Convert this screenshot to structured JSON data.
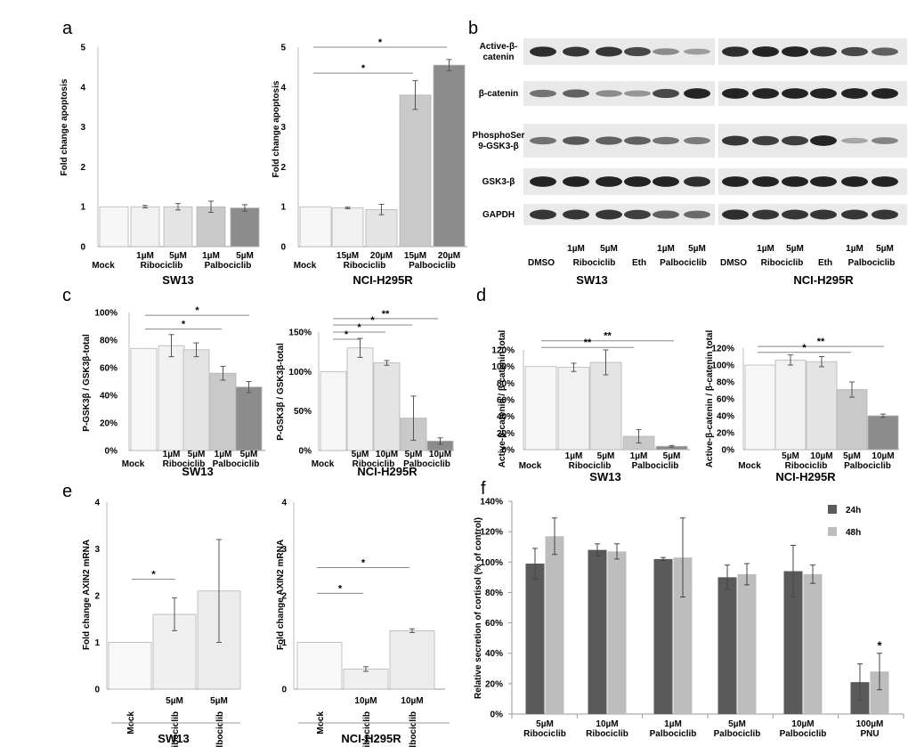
{
  "chart_data": [
    {
      "id": "a1",
      "panel": "a",
      "type": "bar",
      "title": "SW13",
      "ylabel": "Fold change apoptosis",
      "ylim": [
        0,
        5
      ],
      "yticks": [
        {
          "v": 0,
          "label": "0"
        },
        {
          "v": 1,
          "label": "1"
        },
        {
          "v": 2,
          "label": "2"
        },
        {
          "v": 3,
          "label": "3"
        },
        {
          "v": 4,
          "label": "4"
        },
        {
          "v": 5,
          "label": "5"
        }
      ],
      "categories": [
        "Mock",
        "1µM Ribociclib",
        "5µM Ribociclib",
        "1µM Palbociclib",
        "5µM Palbociclib"
      ],
      "values": [
        1.0,
        1.0,
        1.0,
        1.0,
        0.97
      ],
      "errors": [
        0,
        0.03,
        0.08,
        0.14,
        0.08
      ],
      "colors": [
        "#f6f6f6",
        "#f1f1f1",
        "#e4e4e4",
        "#c9c9c9",
        "#8c8c8c"
      ],
      "conc_labels": [
        "",
        "1µM",
        "5µM",
        "1µM",
        "5µM"
      ],
      "group_labels": [
        "Mock",
        "Ribociclib",
        "Palbociclib"
      ],
      "significance": []
    },
    {
      "id": "a2",
      "panel": "",
      "type": "bar",
      "title": "NCI-H295R",
      "ylabel": "Fold change apoptosis",
      "ylim": [
        0,
        5
      ],
      "yticks": [
        {
          "v": 0,
          "label": "0"
        },
        {
          "v": 1,
          "label": "1"
        },
        {
          "v": 2,
          "label": "2"
        },
        {
          "v": 3,
          "label": "3"
        },
        {
          "v": 4,
          "label": "4"
        },
        {
          "v": 5,
          "label": "5"
        }
      ],
      "categories": [
        "Mock",
        "15µM Ribociclib",
        "20µM Ribociclib",
        "15µM Palbociclib",
        "20µM Palbociclib"
      ],
      "values": [
        1.0,
        0.97,
        0.93,
        3.8,
        4.55
      ],
      "errors": [
        0,
        0.02,
        0.13,
        0.36,
        0.14
      ],
      "colors": [
        "#f6f6f6",
        "#f1f1f1",
        "#e4e4e4",
        "#c9c9c9",
        "#8c8c8c"
      ],
      "conc_labels": [
        "",
        "15µM",
        "20µM",
        "15µM",
        "20µM"
      ],
      "group_labels": [
        "Mock",
        "Ribociclib",
        "Palbociclib"
      ],
      "significance": [
        {
          "y": 5.0,
          "label": "*"
        },
        {
          "y": 4.35,
          "label": "*"
        }
      ]
    },
    {
      "id": "c1",
      "panel": "c",
      "type": "bar",
      "title": "SW13",
      "ylabel": "P-GSK3β / GSK3β-total",
      "ylim": [
        0,
        100
      ],
      "yticks": [
        {
          "v": 0,
          "label": "0%"
        },
        {
          "v": 20,
          "label": "20%"
        },
        {
          "v": 40,
          "label": "40%"
        },
        {
          "v": 60,
          "label": "60%"
        },
        {
          "v": 80,
          "label": "80%"
        },
        {
          "v": 100,
          "label": "100%"
        }
      ],
      "categories": [
        "Mock",
        "1µM Ribociclib",
        "5µM Ribociclib",
        "1µM Palbociclib",
        "5µM Palbociclib"
      ],
      "values": [
        74,
        76,
        73,
        56,
        46
      ],
      "errors": [
        0,
        8,
        5,
        5,
        4
      ],
      "colors": [
        "#f6f6f6",
        "#f1f1f1",
        "#e4e4e4",
        "#c9c9c9",
        "#8c8c8c"
      ],
      "conc_labels": [
        "",
        "1µM",
        "5µM",
        "1µM",
        "5µM"
      ],
      "group_labels": [
        "Mock",
        "Ribociclib",
        "Palbociclib"
      ],
      "significance": [
        {
          "y": 98,
          "label": "*"
        },
        {
          "y": 88,
          "label": "*"
        }
      ]
    },
    {
      "id": "c2",
      "panel": "",
      "type": "bar",
      "title": "NCI-H295R",
      "ylabel": "P-GSK3β / GSK3β-total",
      "ylim": [
        0,
        150
      ],
      "yticks": [
        {
          "v": 0,
          "label": "0%"
        },
        {
          "v": 50,
          "label": "50%"
        },
        {
          "v": 100,
          "label": "100%"
        },
        {
          "v": 150,
          "label": "150%"
        }
      ],
      "categories": [
        "Mock",
        "5µM Ribociclib",
        "10µM Ribociclib",
        "5µM Palbociclib",
        "10µM Palbociclib"
      ],
      "values": [
        100,
        130,
        111,
        41,
        12
      ],
      "errors": [
        0,
        12,
        3,
        28,
        4
      ],
      "colors": [
        "#f6f6f6",
        "#f1f1f1",
        "#e4e4e4",
        "#c9c9c9",
        "#8c8c8c"
      ],
      "conc_labels": [
        "",
        "5µM",
        "10µM",
        "5µM",
        "10µM"
      ],
      "group_labels": [
        "Mock",
        "Ribociclib",
        "Palbociclib"
      ],
      "significance": [
        {
          "y": 167,
          "label": "**"
        },
        {
          "y": 159,
          "label": "*"
        },
        {
          "y": 150,
          "label": "*"
        },
        {
          "y": 141,
          "label": "*"
        }
      ]
    },
    {
      "id": "d1",
      "panel": "d",
      "type": "bar",
      "title": "SW13",
      "ylabel": "Active-β-catenin / β-catenin total",
      "ylim": [
        0,
        120
      ],
      "yticks": [
        {
          "v": 0,
          "label": "0%"
        },
        {
          "v": 20,
          "label": "20%"
        },
        {
          "v": 40,
          "label": "40%"
        },
        {
          "v": 60,
          "label": "60%"
        },
        {
          "v": 80,
          "label": "80%"
        },
        {
          "v": 100,
          "label": "100%"
        },
        {
          "v": 120,
          "label": "120%"
        }
      ],
      "categories": [
        "Mock",
        "1µM Ribociclib",
        "5µM Ribociclib",
        "1µM Palbociclib",
        "5µM Palbociclib"
      ],
      "values": [
        100,
        99,
        105,
        16,
        4
      ],
      "errors": [
        0,
        5,
        15,
        8,
        1
      ],
      "colors": [
        "#f6f6f6",
        "#f1f1f1",
        "#e4e4e4",
        "#c9c9c9",
        "#8c8c8c"
      ],
      "conc_labels": [
        "",
        "1µM",
        "5µM",
        "1µM",
        "5µM"
      ],
      "group_labels": [
        "Mock",
        "Ribociclib",
        "Palbociclib"
      ],
      "significance": [
        {
          "y": 131,
          "label": "**"
        },
        {
          "y": 123,
          "label": "**"
        }
      ]
    },
    {
      "id": "d2",
      "panel": "",
      "type": "bar",
      "title": "NCI-H295R",
      "ylabel": "Active-β-catenin / β-catenin total",
      "ylim": [
        0,
        120
      ],
      "yticks": [
        {
          "v": 0,
          "label": "0%"
        },
        {
          "v": 20,
          "label": "20%"
        },
        {
          "v": 40,
          "label": "40%"
        },
        {
          "v": 60,
          "label": "60%"
        },
        {
          "v": 80,
          "label": "80%"
        },
        {
          "v": 100,
          "label": "100%"
        },
        {
          "v": 120,
          "label": "120%"
        }
      ],
      "categories": [
        "Mock",
        "5µM Ribociclib",
        "10µM Ribociclib",
        "5µM Palbociclib",
        "10µM Palbociclib"
      ],
      "values": [
        100,
        106,
        104,
        71,
        40
      ],
      "errors": [
        0,
        6,
        6,
        9,
        2
      ],
      "colors": [
        "#f6f6f6",
        "#f1f1f1",
        "#e4e4e4",
        "#c9c9c9",
        "#8c8c8c"
      ],
      "conc_labels": [
        "",
        "5µM",
        "10µM",
        "5µM",
        "10µM"
      ],
      "group_labels": [
        "Mock",
        "Ribociclib",
        "Palbociclib"
      ],
      "significance": [
        {
          "y": 122,
          "label": "**"
        },
        {
          "y": 115,
          "label": "*"
        }
      ]
    },
    {
      "id": "e1",
      "panel": "e",
      "type": "bar",
      "title": "SW13",
      "ylabel": "Fold change AXIN2 mRNA",
      "ylim": [
        0,
        4
      ],
      "yticks": [
        {
          "v": 0,
          "label": "0"
        },
        {
          "v": 1,
          "label": "1"
        },
        {
          "v": 2,
          "label": "2"
        },
        {
          "v": 3,
          "label": "3"
        },
        {
          "v": 4,
          "label": "4"
        }
      ],
      "categories": [
        "Mock",
        "5µM Ribociclib",
        "5µM Palbociclib"
      ],
      "values": [
        1.0,
        1.6,
        2.1
      ],
      "errors": [
        0,
        0.35,
        1.1
      ],
      "colors": [
        "#f8f8f8",
        "#f0f0f0",
        "#ececec"
      ],
      "conc_labels": [
        "",
        "5µM",
        "5µM"
      ],
      "names": [
        "Mock",
        "Ribociclib",
        "Palbociclib"
      ],
      "significance": [
        {
          "y": 2.35,
          "label": "*"
        }
      ]
    },
    {
      "id": "e2",
      "panel": "",
      "type": "bar",
      "title": "NCI-H295R",
      "ylabel": "Fold change AXIN2 mRNA",
      "ylim": [
        0,
        4
      ],
      "yticks": [
        {
          "v": 0,
          "label": "0"
        },
        {
          "v": 1,
          "label": "1"
        },
        {
          "v": 2,
          "label": "2"
        },
        {
          "v": 3,
          "label": "3"
        },
        {
          "v": 4,
          "label": "4"
        }
      ],
      "categories": [
        "Mock",
        "10µM Ribociclib",
        "10µM Palbociclib"
      ],
      "values": [
        1.0,
        0.43,
        1.25
      ],
      "errors": [
        0,
        0.05,
        0.04
      ],
      "colors": [
        "#f8f8f8",
        "#f0f0f0",
        "#ececec"
      ],
      "conc_labels": [
        "",
        "10µM",
        "10µM"
      ],
      "names": [
        "Mock",
        "Ribociclib",
        "Palbociclib"
      ],
      "significance": [
        {
          "y": 2.6,
          "label": "*"
        },
        {
          "y": 2.05,
          "label": "*"
        }
      ]
    },
    {
      "id": "f",
      "panel": "f",
      "type": "bar",
      "title": "",
      "ylabel": "Relative secretion of cortisol (% of control)",
      "ylim": [
        0,
        140
      ],
      "yticks": [
        {
          "v": 0,
          "label": "0%"
        },
        {
          "v": 20,
          "label": "20%"
        },
        {
          "v": 40,
          "label": "40%"
        },
        {
          "v": 60,
          "label": "60%"
        },
        {
          "v": 80,
          "label": "80%"
        },
        {
          "v": 100,
          "label": "100%"
        },
        {
          "v": 120,
          "label": "120%"
        },
        {
          "v": 140,
          "label": "140%"
        }
      ],
      "categories": [
        {
          "conc": "5µM",
          "drug": "Ribociclib"
        },
        {
          "conc": "10µM",
          "drug": "Ribociclib"
        },
        {
          "conc": "1µM",
          "drug": "Palbociclib"
        },
        {
          "conc": "5µM",
          "drug": "Palbociclib"
        },
        {
          "conc": "10µM",
          "drug": "Palbociclib"
        },
        {
          "conc": "100µM",
          "drug": "PNU"
        }
      ],
      "series": [
        {
          "name": "24h",
          "color": "#5a5a5a",
          "values": [
            99,
            108,
            102,
            90,
            94,
            21
          ],
          "errors": [
            10,
            4,
            1,
            8,
            17,
            12
          ]
        },
        {
          "name": "48h",
          "color": "#bdbdbd",
          "values": [
            117,
            107,
            103,
            92,
            92,
            28
          ],
          "errors": [
            12,
            5,
            26,
            7,
            6,
            12
          ]
        }
      ],
      "significance": [
        {
          "category": 5,
          "series": 1,
          "label": "*"
        }
      ],
      "legend_position": "top-right"
    }
  ],
  "western_blot": {
    "panel": "b",
    "row_labels": [
      "Active-β-catenin",
      "β-catenin",
      "PhosphoSer9-GSK3-β",
      "GSK3-β",
      "GAPDH"
    ],
    "row_label_lines": [
      [
        "Active-β-",
        "catenin"
      ],
      [
        "β-catenin"
      ],
      [
        "PhosphoSer",
        "9-GSK3-β"
      ],
      [
        "GSK3-β"
      ],
      [
        "GAPDH"
      ]
    ],
    "lanes": [
      "DMSO",
      "1µM Ribociclib",
      "5µM Ribociclib",
      "Eth",
      "1µM Palbociclib",
      "5µM Palbociclib"
    ],
    "lane_concs": [
      "",
      "1µM",
      "5µM",
      "",
      "1µM",
      "5µM"
    ],
    "lane_groups": [
      "DMSO",
      "Ribociclib",
      "Eth",
      "Palbociclib"
    ],
    "cell_lines": [
      "SW13",
      "NCI-H295R"
    ],
    "band_intensity": {
      "SW13": [
        [
          0.9,
          0.85,
          0.85,
          0.75,
          0.35,
          0.25
        ],
        [
          0.5,
          0.6,
          0.35,
          0.3,
          0.75,
          0.95
        ],
        [
          0.5,
          0.65,
          0.6,
          0.6,
          0.5,
          0.45
        ],
        [
          0.95,
          0.95,
          0.95,
          0.95,
          0.95,
          0.9
        ],
        [
          0.85,
          0.85,
          0.85,
          0.8,
          0.6,
          0.55
        ]
      ],
      "NCI-H295R": [
        [
          0.9,
          0.95,
          0.95,
          0.85,
          0.75,
          0.6
        ],
        [
          0.95,
          0.95,
          0.95,
          0.95,
          0.95,
          0.95
        ],
        [
          0.85,
          0.8,
          0.8,
          0.95,
          0.2,
          0.4
        ],
        [
          0.95,
          0.95,
          0.95,
          0.95,
          0.95,
          0.95
        ],
        [
          0.9,
          0.85,
          0.85,
          0.85,
          0.85,
          0.85
        ]
      ]
    }
  }
}
